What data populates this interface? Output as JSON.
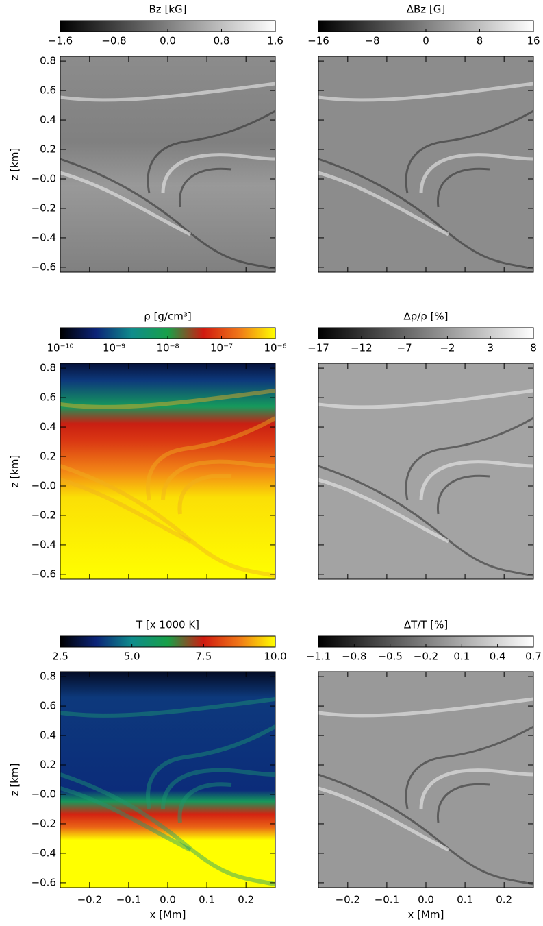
{
  "chart_data": [
    {
      "type": "image",
      "title": "Bz [kG]",
      "colormap": [
        "#000000",
        "#ffffff"
      ],
      "clim": [
        -1.6,
        1.6
      ],
      "cticks": [
        {
          "value": -1.6,
          "label": "−1.6"
        },
        {
          "value": -0.8,
          "label": "−0.8"
        },
        {
          "value": 0,
          "label": "0.0"
        },
        0.8,
        1.6
      ],
      "ylabel": "z [km]",
      "ylim": [
        -0.633,
        0.833
      ],
      "yticks": [
        {
          "value": -0.6,
          "label": "−0.6"
        },
        {
          "value": -0.4,
          "label": "−0.4"
        },
        {
          "value": -0.2,
          "label": "−0.2"
        },
        {
          "value": 0,
          "label": "−0.0"
        },
        0.2,
        0.4,
        0.6,
        0.8
      ],
      "xlim": [
        -0.275,
        0.275
      ],
      "xticks": [
        -0.2,
        -0.1,
        {
          "value": 0,
          "label": "0.0"
        },
        0.1,
        0.2
      ],
      "xtick_labels": false,
      "ytick_labels": true
    },
    {
      "type": "image",
      "title": "ΔBz [G]",
      "colormap": [
        "#000000",
        "#ffffff"
      ],
      "clim": [
        -16,
        16
      ],
      "cticks": [
        {
          "value": -16,
          "label": "−16"
        },
        {
          "value": -8,
          "label": "−8"
        },
        0,
        8,
        16
      ],
      "ylim": [
        -0.633,
        0.833
      ],
      "yticks": [
        {
          "value": -0.6,
          "label": "−0.6"
        },
        {
          "value": -0.4,
          "label": "−0.4"
        },
        {
          "value": -0.2,
          "label": "−0.2"
        },
        {
          "value": 0,
          "label": "−0.0"
        },
        0.2,
        0.4,
        0.6,
        0.8
      ],
      "xlim": [
        -0.275,
        0.275
      ],
      "xticks": [
        -0.2,
        -0.1,
        {
          "value": 0,
          "label": "0.0"
        },
        0.1,
        0.2
      ],
      "xtick_labels": false,
      "ytick_labels": false
    },
    {
      "type": "image",
      "title": "ρ [g/cm³]",
      "colormap": [
        "#000000",
        "#0c2478",
        "#0f8c8c",
        "#18a048",
        "#d01a10",
        "#f07818",
        "#ffff00"
      ],
      "clim": [
        1e-10,
        1e-06
      ],
      "clog": true,
      "cticks": [
        {
          "value": 1e-10,
          "label": "10⁻¹⁰"
        },
        {
          "value": 1e-09,
          "label": "10⁻⁹"
        },
        {
          "value": 1e-08,
          "label": "10⁻⁸"
        },
        {
          "value": 1e-07,
          "label": "10⁻⁷"
        },
        {
          "value": 1e-06,
          "label": "10⁻⁶"
        }
      ],
      "ylabel": "z [km]",
      "ylim": [
        -0.633,
        0.833
      ],
      "yticks": [
        {
          "value": -0.6,
          "label": "−0.6"
        },
        {
          "value": -0.4,
          "label": "−0.4"
        },
        {
          "value": -0.2,
          "label": "−0.2"
        },
        {
          "value": 0,
          "label": "−0.0"
        },
        0.2,
        0.4,
        0.6,
        0.8
      ],
      "xlim": [
        -0.275,
        0.275
      ],
      "xticks": [
        -0.2,
        -0.1,
        {
          "value": 0,
          "label": "0.0"
        },
        0.1,
        0.2
      ],
      "xtick_labels": false,
      "ytick_labels": true
    },
    {
      "type": "image",
      "title": "Δρ/ρ [%]",
      "colormap": [
        "#000000",
        "#ffffff"
      ],
      "clim": [
        -17,
        8
      ],
      "cticks": [
        {
          "value": -17,
          "label": "−17"
        },
        {
          "value": -12,
          "label": "−12"
        },
        {
          "value": -7,
          "label": "−7"
        },
        {
          "value": -2,
          "label": "−2"
        },
        3,
        8
      ],
      "ylim": [
        -0.633,
        0.833
      ],
      "yticks": [
        {
          "value": -0.6,
          "label": "−0.6"
        },
        {
          "value": -0.4,
          "label": "−0.4"
        },
        {
          "value": -0.2,
          "label": "−0.2"
        },
        {
          "value": 0,
          "label": "−0.0"
        },
        0.2,
        0.4,
        0.6,
        0.8
      ],
      "xlim": [
        -0.275,
        0.275
      ],
      "xticks": [
        -0.2,
        -0.1,
        {
          "value": 0,
          "label": "0.0"
        },
        0.1,
        0.2
      ],
      "xtick_labels": false,
      "ytick_labels": false
    },
    {
      "type": "image",
      "title": "T [x 1000 K]",
      "colormap": [
        "#000000",
        "#0c2478",
        "#0f8c8c",
        "#18a048",
        "#d01a10",
        "#f07818",
        "#ffff00"
      ],
      "clim": [
        2.5,
        10
      ],
      "cticks": [
        2.5,
        {
          "value": 5,
          "label": "5.0"
        },
        7.5,
        {
          "value": 10,
          "label": "10.0"
        }
      ],
      "ylabel": "z [km]",
      "ylim": [
        -0.633,
        0.833
      ],
      "yticks": [
        {
          "value": -0.6,
          "label": "−0.6"
        },
        {
          "value": -0.4,
          "label": "−0.4"
        },
        {
          "value": -0.2,
          "label": "−0.2"
        },
        {
          "value": 0,
          "label": "−0.0"
        },
        0.2,
        0.4,
        0.6,
        0.8
      ],
      "xlabel": "x [Mm]",
      "xlim": [
        -0.275,
        0.275
      ],
      "xticks": [
        {
          "value": -0.2,
          "label": "−0.2"
        },
        {
          "value": -0.1,
          "label": "−0.1"
        },
        {
          "value": 0,
          "label": "0.0"
        },
        0.1,
        0.2
      ],
      "xtick_labels": true,
      "ytick_labels": true
    },
    {
      "type": "image",
      "title": "ΔT/T [%]",
      "colormap": [
        "#000000",
        "#ffffff"
      ],
      "clim": [
        -1.1,
        0.7
      ],
      "cticks": [
        {
          "value": -1.1,
          "label": "−1.1"
        },
        {
          "value": -0.8,
          "label": "−0.8"
        },
        {
          "value": -0.5,
          "label": "−0.5"
        },
        {
          "value": -0.2,
          "label": "−0.2"
        },
        0.1,
        0.4,
        0.7
      ],
      "ylim": [
        -0.633,
        0.833
      ],
      "yticks": [
        {
          "value": -0.6,
          "label": "−0.6"
        },
        {
          "value": -0.4,
          "label": "−0.4"
        },
        {
          "value": -0.2,
          "label": "−0.2"
        },
        {
          "value": 0,
          "label": "−0.0"
        },
        0.2,
        0.4,
        0.6,
        0.8
      ],
      "xlabel": "x [Mm]",
      "xlim": [
        -0.275,
        0.275
      ],
      "xticks": [
        {
          "value": -0.2,
          "label": "−0.2"
        },
        {
          "value": -0.1,
          "label": "−0.1"
        },
        {
          "value": 0,
          "label": "0.0"
        },
        0.1,
        0.2
      ],
      "xtick_labels": true,
      "ytick_labels": false
    }
  ]
}
